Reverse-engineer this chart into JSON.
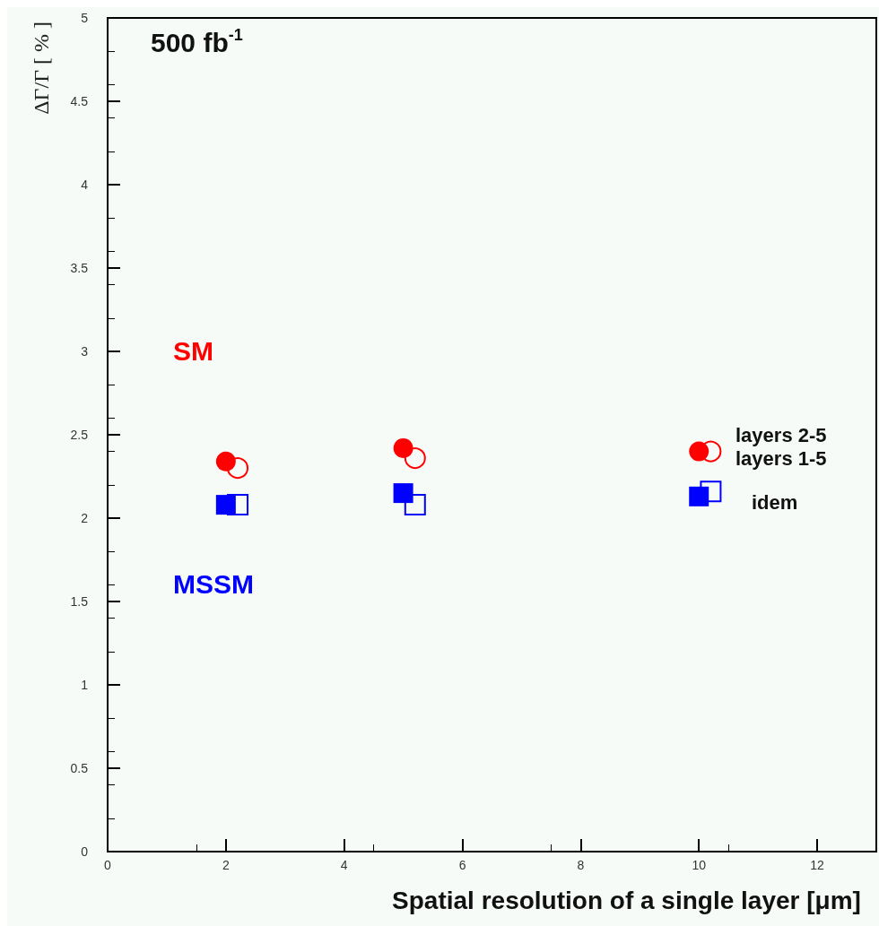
{
  "chart_data": {
    "type": "scatter",
    "xlabel": "Spatial resolution of a single layer [μm]",
    "ylabel": "ΔΓ/Γ [ % ]",
    "xlim": [
      0,
      13
    ],
    "xticks": [
      0,
      2,
      4,
      6,
      8,
      10,
      12
    ],
    "ylim": [
      0,
      5
    ],
    "yticks": [
      0,
      0.5,
      1,
      1.5,
      2,
      2.5,
      3,
      3.5,
      4,
      4.5,
      5
    ],
    "grid": false,
    "series": [
      {
        "color": "#ff0000",
        "marker": "circle",
        "x": [
          2,
          5,
          10
        ],
        "values": [
          2.34,
          2.42,
          2.4
        ]
      },
      {
        "color": "#ff0000",
        "marker": "circle-open",
        "x": [
          2.2,
          5.2,
          10.2
        ],
        "values": [
          2.3,
          2.36,
          2.4
        ]
      },
      {
        "color": "#0000ff",
        "marker": "square",
        "x": [
          2,
          5,
          10
        ],
        "values": [
          2.08,
          2.15,
          2.13
        ]
      },
      {
        "color": "#0000ff",
        "marker": "square-open",
        "x": [
          2.2,
          5.2,
          10.2
        ],
        "values": [
          2.08,
          2.08,
          2.16
        ]
      }
    ],
    "annotations": [
      "500 fb$^{-1}$",
      "SM",
      "MSSM",
      "layers 2-5",
      "layers 1-5",
      "idem"
    ]
  }
}
